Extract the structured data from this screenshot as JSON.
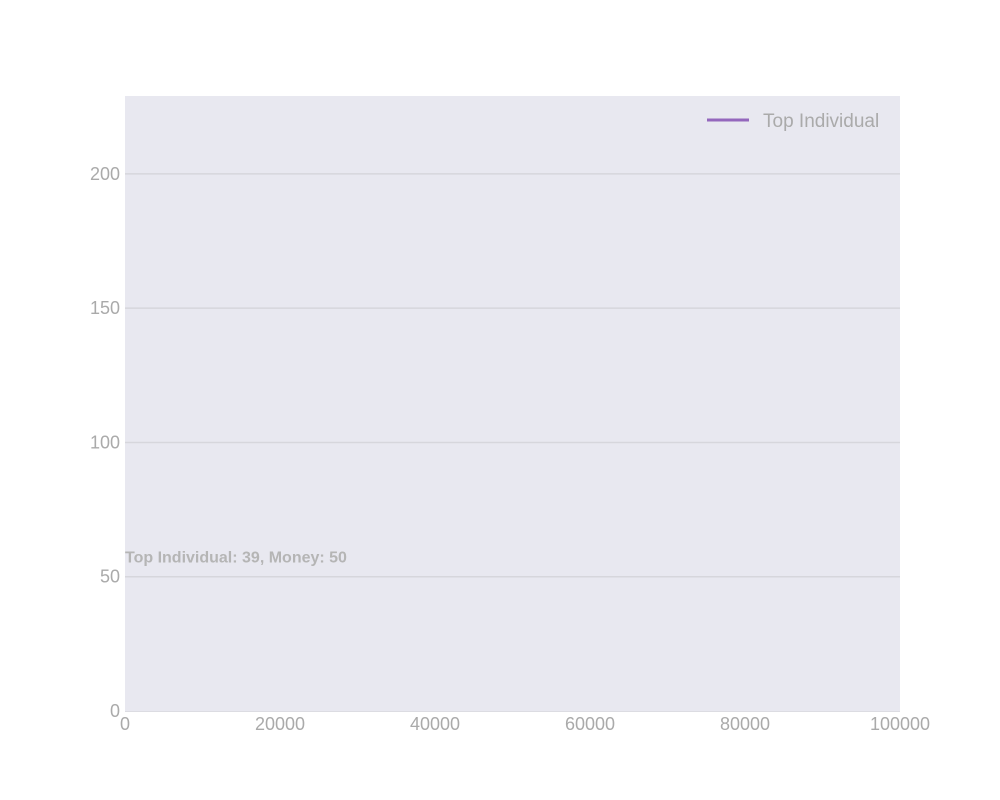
{
  "chart_data": {
    "type": "line",
    "title": "",
    "xlabel": "",
    "ylabel": "",
    "xlim": [
      0,
      100000
    ],
    "ylim": [
      0,
      229
    ],
    "x_ticks": [
      0,
      20000,
      40000,
      60000,
      80000,
      100000
    ],
    "y_ticks": [
      0,
      50,
      100,
      150,
      200
    ],
    "grid": true,
    "background": "#e8e8f0",
    "legend_position": "top-right",
    "series": [
      {
        "name": "Top Individual",
        "color": "#9467bd",
        "x": [],
        "y": []
      }
    ],
    "annotation": {
      "text": "Top Individual: 39, Money: 50",
      "x": 0,
      "y": 50
    }
  }
}
